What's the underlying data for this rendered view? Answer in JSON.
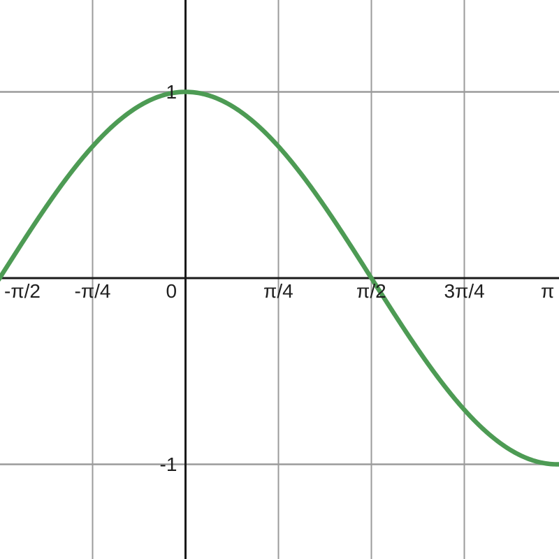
{
  "chart_data": {
    "type": "line",
    "title": "",
    "function": "y = cos(x)",
    "grid": true,
    "legend": false,
    "x_axis": {
      "label": "",
      "unit": "radians",
      "range_pi": [
        -0.5,
        1.005
      ],
      "ticks": [
        {
          "value_pi": -0.5,
          "label": "-π/2",
          "gridline": false
        },
        {
          "value_pi": -0.25,
          "label": "-π/4",
          "gridline": true
        },
        {
          "value_pi": 0,
          "label": "0",
          "gridline": false
        },
        {
          "value_pi": 0.25,
          "label": "π/4",
          "gridline": true
        },
        {
          "value_pi": 0.5,
          "label": "π/2",
          "gridline": true
        },
        {
          "value_pi": 0.75,
          "label": "3π/4",
          "gridline": true
        },
        {
          "value_pi": 1.0,
          "label": "π",
          "gridline": false
        }
      ]
    },
    "y_axis": {
      "label": "",
      "range": [
        -1.51,
        1.49
      ],
      "ticks": [
        {
          "value": 1,
          "label": "1",
          "gridline": true
        },
        {
          "value": -1,
          "label": "-1",
          "gridline": true
        }
      ]
    },
    "series": [
      {
        "name": "cos(x)",
        "color": "#4d9b54",
        "x_pi": [
          -0.5,
          -0.45,
          -0.4,
          -0.35,
          -0.3,
          -0.25,
          -0.2,
          -0.15,
          -0.1,
          -0.05,
          0,
          0.05,
          0.1,
          0.15,
          0.2,
          0.25,
          0.3,
          0.35,
          0.4,
          0.45,
          0.5,
          0.55,
          0.6,
          0.65,
          0.7,
          0.75,
          0.8,
          0.85,
          0.9,
          0.95,
          1.0
        ],
        "y": [
          0,
          0.156,
          0.309,
          0.454,
          0.588,
          0.707,
          0.809,
          0.891,
          0.951,
          0.988,
          1,
          0.988,
          0.951,
          0.891,
          0.809,
          0.707,
          0.588,
          0.454,
          0.309,
          0.156,
          0,
          -0.156,
          -0.309,
          -0.454,
          -0.588,
          -0.707,
          -0.809,
          -0.891,
          -0.951,
          -0.988,
          -1
        ]
      }
    ],
    "colors": {
      "background": "#ffffff",
      "grid": "#9b9b9b",
      "axis": "#1a1a1a",
      "curve": "#4d9b54",
      "label": "#1f1f1f"
    }
  }
}
